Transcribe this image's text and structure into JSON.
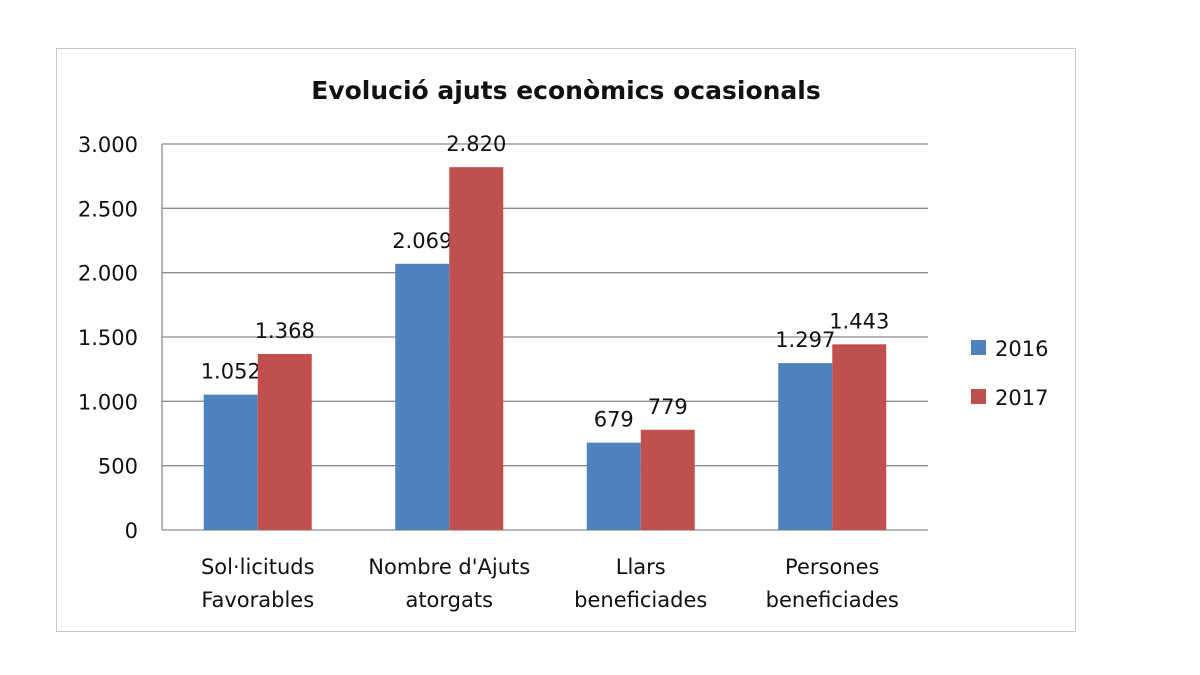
{
  "chart_data": {
    "type": "bar",
    "title": "Evolució ajuts econòmics ocasionals",
    "categories": [
      [
        "Sol·licituds",
        "Favorables"
      ],
      [
        "Nombre d'Ajuts",
        "atorgats"
      ],
      [
        "Llars",
        "beneficiades"
      ],
      [
        "Persones",
        "beneficiades"
      ]
    ],
    "series": [
      {
        "name": "2016",
        "color": "#4F81BD",
        "values": [
          1052,
          2069,
          679,
          1297
        ],
        "labels": [
          "1.052",
          "2.069",
          "679",
          "1.297"
        ]
      },
      {
        "name": "2017",
        "color": "#C0504D",
        "values": [
          1368,
          2820,
          779,
          1443
        ],
        "labels": [
          "1.368",
          "2.820",
          "779",
          "1.443"
        ]
      }
    ],
    "ylim": [
      0,
      3000
    ],
    "yticks": [
      0,
      500,
      1000,
      1500,
      2000,
      2500,
      3000
    ],
    "ytick_labels": [
      "0",
      "500",
      "1.000",
      "1.500",
      "2.000",
      "2.500",
      "3.000"
    ],
    "grid": true,
    "legend": "right",
    "xlabel": "",
    "ylabel": ""
  }
}
